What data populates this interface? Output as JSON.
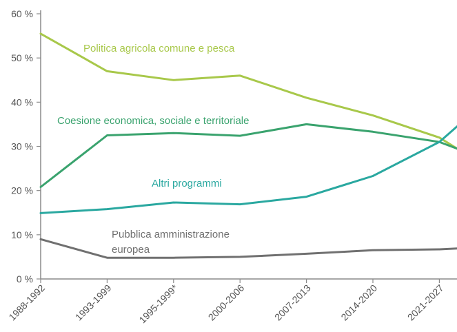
{
  "chart_data": {
    "type": "line",
    "categories": [
      "1988-1992",
      "1993-1999",
      "1995-1999*",
      "2000-2006",
      "2007-2013",
      "2014-2020",
      "2021-2027"
    ],
    "ylim": [
      0,
      60
    ],
    "yticks": [
      "0 %",
      "10 %",
      "20 %",
      "30 %",
      "40 %",
      "50 %",
      "60 %"
    ],
    "grid": false,
    "series": [
      {
        "name": "Politica agricola comune e pesca",
        "color": "#a8c84a",
        "values": [
          55.5,
          47.0,
          45.0,
          46.0,
          41.0,
          37.0,
          32.0
        ],
        "end_value": 29.5
      },
      {
        "name": "Coesione economica, sociale e territoriale",
        "color": "#3aa36e",
        "values": [
          20.8,
          32.5,
          33.0,
          32.4,
          35.0,
          33.3,
          31.0
        ],
        "end_value": 29.5
      },
      {
        "name": "Altri programmi",
        "color": "#2aa8a0",
        "values": [
          14.9,
          15.8,
          17.3,
          16.9,
          18.6,
          23.3,
          31.0
        ],
        "end_value": 34.5
      },
      {
        "name": "Pubblica amministrazione europea",
        "label_lines": [
          "Pubblica amministrazione",
          "europea"
        ],
        "color": "#707070",
        "values": [
          9.0,
          4.8,
          4.8,
          5.0,
          5.7,
          6.5,
          6.7
        ],
        "end_value": 6.9
      }
    ]
  }
}
